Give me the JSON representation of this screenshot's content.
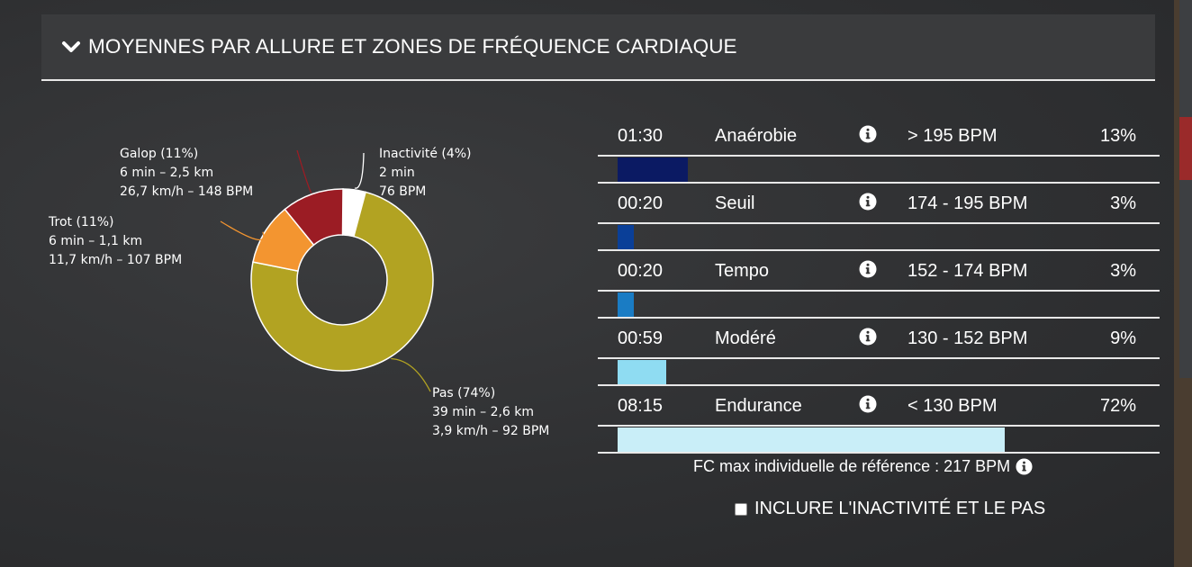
{
  "header": {
    "title": "MOYENNES PAR ALLURE ET ZONES DE FRÉQUENCE CARDIAQUE"
  },
  "chart_data": {
    "type": "pie",
    "donut": true,
    "slices": [
      {
        "name": "Inactivité",
        "percent": 4,
        "color": "#ffffff",
        "label": "Inactivité (4%)",
        "lines": [
          "2 min",
          "76 BPM"
        ]
      },
      {
        "name": "Pas",
        "percent": 74,
        "color": "#b2a322",
        "label": "Pas (74%)",
        "lines": [
          "39 min – 2,6 km",
          "3,9 km/h – 92 BPM"
        ]
      },
      {
        "name": "Trot",
        "percent": 11,
        "color": "#f39530",
        "label": "Trot (11%)",
        "lines": [
          "6 min – 1,1 km",
          "11,7 km/h – 107 BPM"
        ]
      },
      {
        "name": "Galop",
        "percent": 11,
        "color": "#9b1c24",
        "label": "Galop (11%)",
        "lines": [
          "6 min – 2,5 km",
          "26,7 km/h – 148 BPM"
        ]
      }
    ]
  },
  "zones": [
    {
      "time": "01:30",
      "name": "Anaérobie",
      "range": "> 195 BPM",
      "pct_label": "13%",
      "share": 0.13,
      "color": "#0b1a63"
    },
    {
      "time": "00:20",
      "name": "Seuil",
      "range": "174 - 195 BPM",
      "pct_label": "3%",
      "share": 0.03,
      "color": "#0a3f98"
    },
    {
      "time": "00:20",
      "name": "Tempo",
      "range": "152 - 174 BPM",
      "pct_label": "3%",
      "share": 0.03,
      "color": "#1a7cc4"
    },
    {
      "time": "00:59",
      "name": "Modéré",
      "range": "130 - 152 BPM",
      "pct_label": "9%",
      "share": 0.09,
      "color": "#8fdcf2"
    },
    {
      "time": "08:15",
      "name": "Endurance",
      "range": "< 130 BPM",
      "pct_label": "72%",
      "share": 0.72,
      "color": "#c9eef8"
    }
  ],
  "footer": {
    "fc_max": "FC max individuelle de référence : 217 BPM",
    "include_label": "INCLURE L'INACTIVITÉ ET LE PAS",
    "include_checked": false
  },
  "icons": {
    "toggle": "chevron-down-icon",
    "info": "info-icon"
  }
}
